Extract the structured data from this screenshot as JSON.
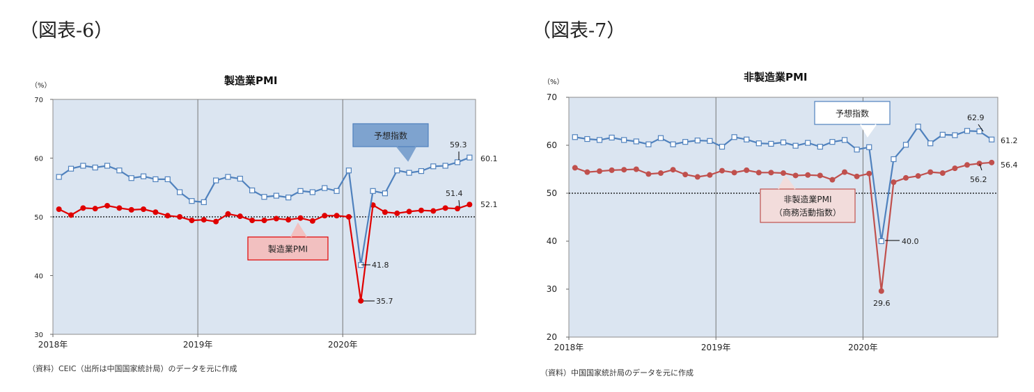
{
  "figures": [
    {
      "label": "（図表-6）",
      "title": "製造業PMI",
      "source": "（資料）CEIC（出所は中国国家統計局）のデータを元に作成"
    },
    {
      "label": "（図表-7）",
      "title": "非製造業PMI",
      "source": "（資料）中国国家統計局のデータを元に作成"
    }
  ],
  "chart_data": [
    {
      "type": "line",
      "title": "製造業PMI",
      "ylabel": "（%）",
      "ylim": [
        30,
        70
      ],
      "yticks": [
        "30",
        "40",
        "50",
        "60",
        "70"
      ],
      "xtick_labels": [
        "2018年",
        "2019年",
        "2020年"
      ],
      "x": [
        "2018-01",
        "2018-02",
        "2018-03",
        "2018-04",
        "2018-05",
        "2018-06",
        "2018-07",
        "2018-08",
        "2018-09",
        "2018-10",
        "2018-11",
        "2018-12",
        "2019-01",
        "2019-02",
        "2019-03",
        "2019-04",
        "2019-05",
        "2019-06",
        "2019-07",
        "2019-08",
        "2019-09",
        "2019-10",
        "2019-11",
        "2019-12",
        "2020-01",
        "2020-02",
        "2020-03",
        "2020-04",
        "2020-05",
        "2020-06",
        "2020-07",
        "2020-08",
        "2020-09",
        "2020-10",
        "2020-11"
      ],
      "reference_line": 50,
      "series": [
        {
          "name": "予想指数",
          "color": "#4f81bd",
          "marker": "square-open",
          "values": [
            56.8,
            58.2,
            58.7,
            58.4,
            58.7,
            57.9,
            56.6,
            56.9,
            56.4,
            56.4,
            54.2,
            52.7,
            52.5,
            56.2,
            56.8,
            56.5,
            54.5,
            53.4,
            53.6,
            53.3,
            54.4,
            54.2,
            54.9,
            54.4,
            57.9,
            41.8,
            54.4,
            54.0,
            57.9,
            57.5,
            57.8,
            58.6,
            58.7,
            59.3,
            60.1
          ]
        },
        {
          "name": "製造業PMI",
          "color": "#e00000",
          "marker": "circle-filled",
          "values": [
            51.3,
            50.3,
            51.5,
            51.4,
            51.9,
            51.5,
            51.2,
            51.3,
            50.8,
            50.2,
            50.0,
            49.4,
            49.5,
            49.2,
            50.5,
            50.1,
            49.4,
            49.4,
            49.7,
            49.5,
            49.8,
            49.3,
            50.2,
            50.2,
            50.0,
            35.7,
            52.0,
            50.8,
            50.6,
            50.9,
            51.1,
            51.0,
            51.5,
            51.4,
            52.1
          ]
        }
      ],
      "annotations": [
        "59.3",
        "60.1",
        "51.4",
        "52.1",
        "41.8",
        "35.7"
      ],
      "callouts": [
        "予想指数",
        "製造業PMI"
      ],
      "grid": "vertical lines at year boundaries",
      "background": "#dbe5f1"
    },
    {
      "type": "line",
      "title": "非製造業PMI",
      "ylabel": "（%）",
      "ylim": [
        20,
        70
      ],
      "yticks": [
        "20",
        "30",
        "40",
        "50",
        "60",
        "70"
      ],
      "xtick_labels": [
        "2018年",
        "2019年",
        "2020年"
      ],
      "x": [
        "2018-01",
        "2018-02",
        "2018-03",
        "2018-04",
        "2018-05",
        "2018-06",
        "2018-07",
        "2018-08",
        "2018-09",
        "2018-10",
        "2018-11",
        "2018-12",
        "2019-01",
        "2019-02",
        "2019-03",
        "2019-04",
        "2019-05",
        "2019-06",
        "2019-07",
        "2019-08",
        "2019-09",
        "2019-10",
        "2019-11",
        "2019-12",
        "2020-01",
        "2020-02",
        "2020-03",
        "2020-04",
        "2020-05",
        "2020-06",
        "2020-07",
        "2020-08",
        "2020-09",
        "2020-10",
        "2020-11"
      ],
      "reference_line": 50,
      "series": [
        {
          "name": "予想指数",
          "color": "#4f81bd",
          "marker": "square-open",
          "values": [
            61.7,
            61.3,
            61.1,
            61.6,
            61.1,
            60.8,
            60.2,
            61.5,
            60.2,
            60.7,
            61.0,
            60.9,
            59.7,
            61.7,
            61.2,
            60.4,
            60.3,
            60.6,
            59.9,
            60.5,
            59.7,
            60.7,
            61.1,
            59.1,
            59.6,
            40.0,
            57.1,
            60.1,
            63.9,
            60.4,
            62.2,
            62.1,
            63.0,
            62.9,
            61.2
          ]
        },
        {
          "name": "非製造業PMI（商務活動指数）",
          "color": "#c0504d",
          "marker": "circle-filled",
          "values": [
            55.3,
            54.4,
            54.6,
            54.8,
            54.9,
            55.0,
            54.0,
            54.2,
            54.9,
            53.9,
            53.4,
            53.8,
            54.7,
            54.3,
            54.8,
            54.3,
            54.3,
            54.2,
            53.7,
            53.8,
            53.7,
            52.8,
            54.4,
            53.5,
            54.1,
            29.6,
            52.3,
            53.2,
            53.6,
            54.4,
            54.2,
            55.2,
            55.9,
            56.2,
            56.4
          ]
        }
      ],
      "annotations": [
        "62.9",
        "61.2",
        "56.2",
        "56.4",
        "40.0",
        "29.6"
      ],
      "callouts": [
        "予想指数",
        "非製造業PMI",
        "（商務活動指数）"
      ],
      "grid": "vertical lines at year boundaries",
      "background": "#dbe5f1"
    }
  ]
}
